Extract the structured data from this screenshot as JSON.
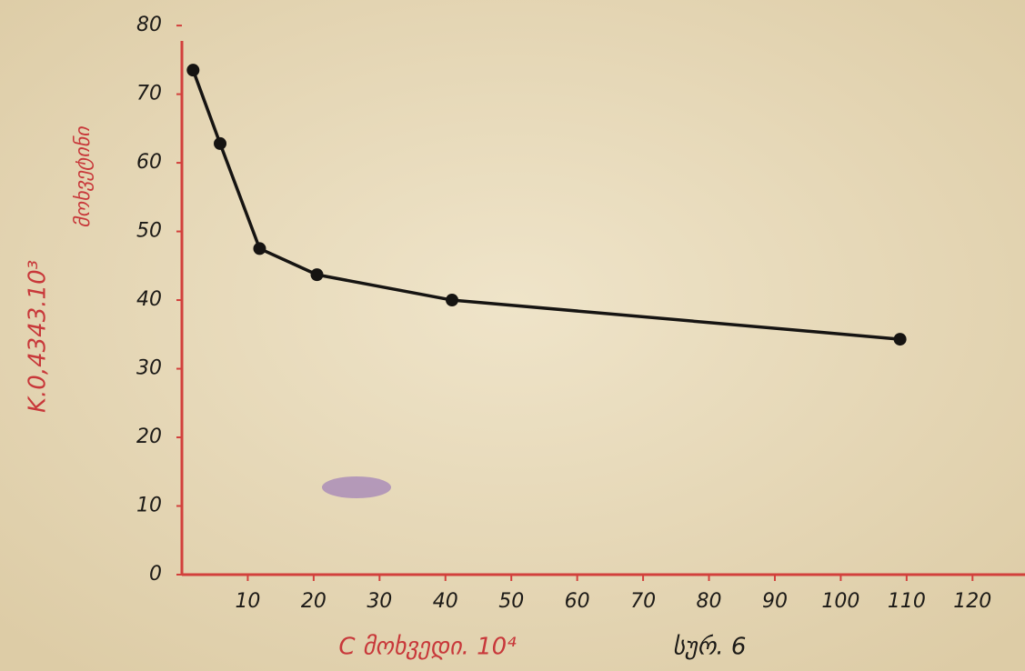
{
  "chart_data": {
    "type": "line",
    "x_label": "C მოხვედი. 10⁴",
    "y_label": "K.0,4343.10³",
    "y_label_2": "მოხვეტინი",
    "caption": "სურ. 6",
    "x": [
      1.7,
      5.8,
      11.8,
      20.5,
      41,
      109
    ],
    "series": [
      {
        "color": "#161412",
        "values": [
          73.5,
          62.8,
          47.5,
          43.7,
          40,
          34.3
        ]
      }
    ],
    "xlim": [
      0,
      127
    ],
    "ylim": [
      0,
      82
    ],
    "xticks": [
      10,
      20,
      30,
      40,
      50,
      60,
      70,
      80,
      90,
      100,
      110,
      120
    ],
    "yticks": [
      0,
      10,
      20,
      30,
      40,
      50,
      60,
      70,
      80
    ],
    "axis_color": "#d2403c"
  }
}
